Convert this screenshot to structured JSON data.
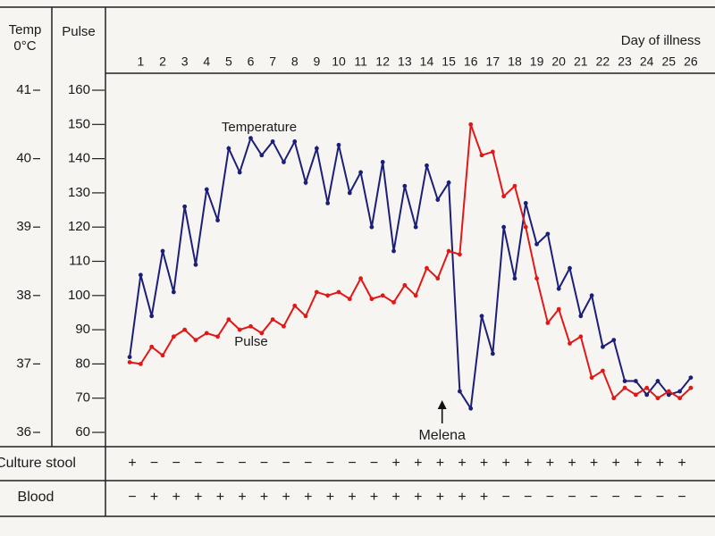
{
  "chart_data": {
    "type": "line",
    "ylabel": "Temp",
    "yunit": "0°C",
    "y2label": "Pulse",
    "xlabel": "Day of illness",
    "x": [
      0.5,
      1,
      1.5,
      2,
      2.5,
      3,
      3.5,
      4,
      4.5,
      5,
      5.5,
      6,
      6.5,
      7,
      7.5,
      8,
      8.5,
      9,
      9.5,
      10,
      10.5,
      11,
      11.5,
      12,
      12.5,
      13,
      13.5,
      14,
      14.5,
      15,
      15.5,
      16,
      16.5,
      17,
      17.5,
      18,
      18.5,
      19,
      19.5,
      20,
      20.5,
      21,
      21.5,
      22,
      22.5,
      23,
      23.5,
      24,
      24.5,
      25,
      25.5,
      26
    ],
    "xlim": [
      -0.6,
      27.1
    ],
    "xticks": [
      1,
      2,
      3,
      4,
      5,
      6,
      7,
      8,
      9,
      10,
      11,
      12,
      13,
      14,
      15,
      16,
      17,
      18,
      19,
      20,
      21,
      22,
      23,
      24,
      25,
      26
    ],
    "ylim": [
      36,
      41
    ],
    "yticks": [
      36,
      37,
      38,
      39,
      40,
      41
    ],
    "y2lim": [
      60,
      160
    ],
    "y2ticks": [
      60,
      70,
      80,
      90,
      100,
      110,
      120,
      130,
      140,
      150,
      160
    ],
    "series": [
      {
        "name": "Temperature",
        "color": "#1c1f78",
        "values": [
          37.1,
          38.3,
          37.7,
          38.65,
          38.05,
          39.3,
          38.45,
          39.55,
          39.1,
          40.15,
          39.8,
          40.3,
          40.05,
          40.25,
          39.95,
          40.25,
          39.65,
          40.15,
          39.35,
          40.2,
          39.5,
          39.8,
          39.0,
          39.95,
          38.65,
          39.6,
          39.0,
          39.9,
          39.4,
          39.65,
          36.6,
          36.35,
          37.7,
          37.15,
          39.0,
          38.25,
          39.35,
          38.75,
          38.9,
          38.1,
          38.4,
          37.7,
          38.0,
          37.25,
          37.35,
          36.75,
          36.75,
          36.55,
          36.75,
          36.55,
          36.6,
          36.8
        ]
      },
      {
        "name": "Pulse",
        "color": "#e01818",
        "axis": "y2",
        "values": [
          80.5,
          80,
          85,
          82.5,
          88,
          90,
          87,
          89,
          88,
          93,
          90,
          91,
          89,
          93,
          91,
          97,
          94,
          101,
          100,
          101,
          99,
          105,
          99,
          100,
          98,
          103,
          100,
          108,
          105,
          113,
          112,
          150,
          141,
          142,
          129,
          132,
          120,
          105,
          92,
          96,
          86,
          88,
          76,
          78,
          70,
          73,
          71,
          73,
          70,
          72,
          70,
          73
        ]
      }
    ],
    "annotations": [
      {
        "text": "Melena",
        "x": 14.7
      }
    ]
  },
  "table": {
    "rows": [
      {
        "label": "Culture stool",
        "values": [
          "+",
          "−",
          "−",
          "−",
          "−",
          "−",
          "−",
          "−",
          "−",
          "−",
          "−",
          "−",
          "+",
          "+",
          "+",
          "+",
          "+",
          "+",
          "+",
          "+",
          "+",
          "+",
          "+",
          "+",
          "+",
          "+"
        ]
      },
      {
        "label": "Blood",
        "values": [
          "−",
          "+",
          "+",
          "+",
          "+",
          "+",
          "+",
          "+",
          "+",
          "+",
          "+",
          "+",
          "+",
          "+",
          "+",
          "+",
          "+",
          "−",
          "−",
          "−",
          "−",
          "−",
          "−",
          "−",
          "−",
          "−"
        ]
      }
    ]
  }
}
